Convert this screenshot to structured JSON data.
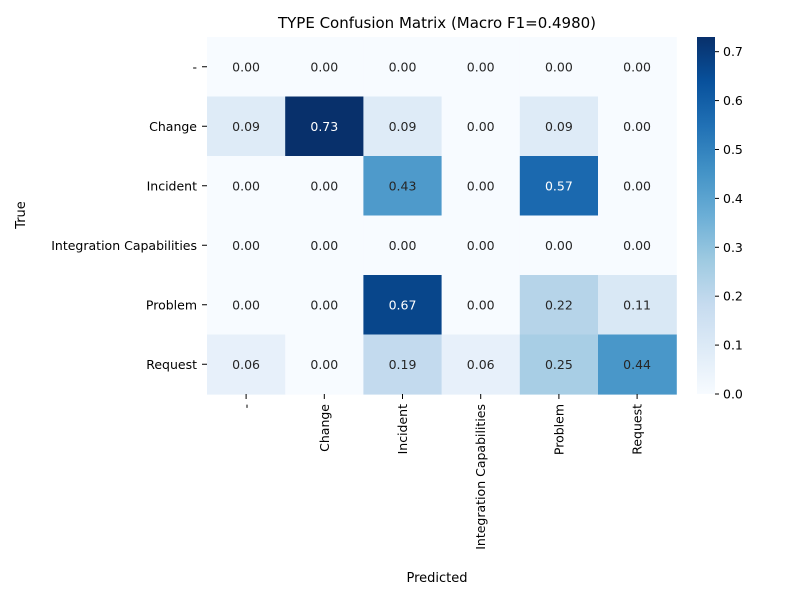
{
  "chart_data": {
    "type": "heatmap",
    "title": "TYPE Confusion Matrix (Macro F1=0.4980)",
    "xlabel": "Predicted",
    "ylabel": "True",
    "row_labels": [
      "-",
      "Change",
      "Incident",
      "Integration Capabilities",
      "Problem",
      "Request"
    ],
    "col_labels": [
      "-",
      "Change",
      "Incident",
      "Integration Capabilities",
      "Problem",
      "Request"
    ],
    "values": [
      [
        0.0,
        0.0,
        0.0,
        0.0,
        0.0,
        0.0
      ],
      [
        0.09,
        0.73,
        0.09,
        0.0,
        0.09,
        0.0
      ],
      [
        0.0,
        0.0,
        0.43,
        0.0,
        0.57,
        0.0
      ],
      [
        0.0,
        0.0,
        0.0,
        0.0,
        0.0,
        0.0
      ],
      [
        0.0,
        0.0,
        0.67,
        0.0,
        0.22,
        0.11
      ],
      [
        0.06,
        0.0,
        0.19,
        0.06,
        0.25,
        0.44
      ]
    ],
    "value_format": "0.00",
    "colormap": "Blues",
    "colorbar": {
      "vmin": 0.0,
      "vmax": 0.73,
      "ticks": [
        0.0,
        0.1,
        0.2,
        0.3,
        0.4,
        0.5,
        0.6,
        0.7
      ],
      "tick_labels": [
        "0.0",
        "0.1",
        "0.2",
        "0.3",
        "0.4",
        "0.5",
        "0.6",
        "0.7"
      ]
    },
    "grid": false
  }
}
